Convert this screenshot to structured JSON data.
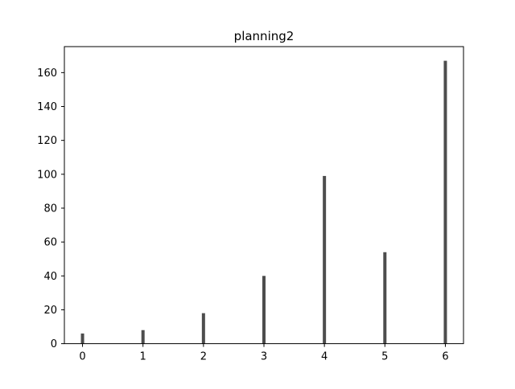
{
  "chart_data": {
    "type": "bar",
    "title": "planning2",
    "xlabel": "",
    "ylabel": "",
    "categories": [
      "0",
      "1",
      "2",
      "3",
      "4",
      "5",
      "6"
    ],
    "x": [
      0,
      1,
      2,
      3,
      4,
      5,
      6
    ],
    "values": [
      6,
      8,
      18,
      40,
      99,
      54,
      167
    ],
    "xlim": [
      -0.3,
      6.3
    ],
    "ylim": [
      0,
      175.35
    ],
    "xticks": [
      0,
      1,
      2,
      3,
      4,
      5,
      6
    ],
    "yticks": [
      0,
      20,
      40,
      60,
      80,
      100,
      120,
      140,
      160
    ],
    "bar_color": "#4d4d4d",
    "grid": false,
    "legend": "none"
  }
}
